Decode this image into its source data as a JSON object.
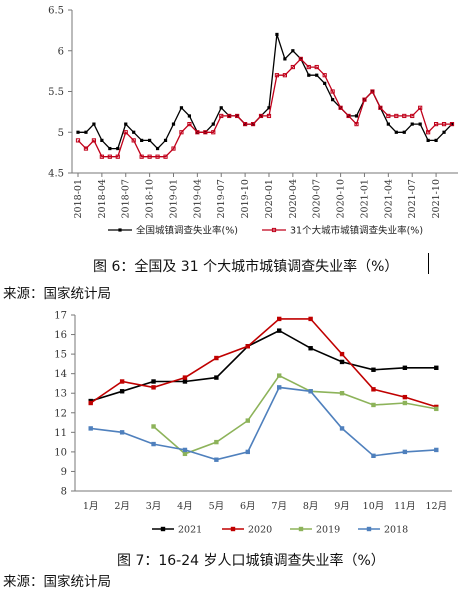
{
  "figure1": {
    "caption": "图 6：全国及 31 个大城市城镇调查失业率（%）",
    "source": "来源：国家统计局"
  },
  "figure2": {
    "caption": "图 7：16-24 岁人口城镇调查失业率（%）",
    "source": "来源：国家统计局"
  },
  "chart_data": [
    {
      "type": "line",
      "title": "",
      "xlabel": "",
      "ylabel": "",
      "ylim": [
        4.5,
        6.5
      ],
      "yticks": [
        "4.5",
        "5",
        "5.5",
        "6",
        "6.5"
      ],
      "grid": false,
      "legend_position": "bottom",
      "xtick_labels": [
        "2018-01",
        "2018-04",
        "2018-07",
        "2018-10",
        "2019-01",
        "2019-04",
        "2019-07",
        "2019-10",
        "2020-01",
        "2020-04",
        "2020-07",
        "2020-10",
        "2021-01",
        "2021-04",
        "2021-07",
        "2021-10"
      ],
      "x": [
        "2018-01",
        "2018-02",
        "2018-03",
        "2018-04",
        "2018-05",
        "2018-06",
        "2018-07",
        "2018-08",
        "2018-09",
        "2018-10",
        "2018-11",
        "2018-12",
        "2019-01",
        "2019-02",
        "2019-03",
        "2019-04",
        "2019-05",
        "2019-06",
        "2019-07",
        "2019-08",
        "2019-09",
        "2019-10",
        "2019-11",
        "2019-12",
        "2020-01",
        "2020-02",
        "2020-03",
        "2020-04",
        "2020-05",
        "2020-06",
        "2020-07",
        "2020-08",
        "2020-09",
        "2020-10",
        "2020-11",
        "2020-12",
        "2021-01",
        "2021-02",
        "2021-03",
        "2021-04",
        "2021-05",
        "2021-06",
        "2021-07",
        "2021-08",
        "2021-09",
        "2021-10",
        "2021-11",
        "2021-12"
      ],
      "series": [
        {
          "name": "全国城镇调查失业率(%)",
          "color": "#000000",
          "values": [
            5.0,
            5.0,
            5.1,
            4.9,
            4.8,
            4.8,
            5.1,
            5.0,
            4.9,
            4.9,
            4.8,
            4.9,
            5.1,
            5.3,
            5.2,
            5.0,
            5.0,
            5.1,
            5.3,
            5.2,
            5.2,
            5.1,
            5.1,
            5.2,
            5.3,
            6.2,
            5.9,
            6.0,
            5.9,
            5.7,
            5.7,
            5.6,
            5.4,
            5.3,
            5.2,
            5.2,
            5.4,
            5.5,
            5.3,
            5.1,
            5.0,
            5.0,
            5.1,
            5.1,
            4.9,
            4.9,
            5.0,
            5.1
          ]
        },
        {
          "name": "31个大城市城镇调查失业率(%)",
          "color": "#c0001a",
          "values": [
            4.9,
            4.8,
            4.9,
            4.7,
            4.7,
            4.7,
            5.0,
            4.9,
            4.7,
            4.7,
            4.7,
            4.7,
            4.8,
            5.0,
            5.1,
            5.0,
            5.0,
            5.0,
            5.2,
            5.2,
            5.2,
            5.1,
            5.1,
            5.2,
            5.2,
            5.7,
            5.7,
            5.8,
            5.9,
            5.8,
            5.8,
            5.7,
            5.5,
            5.3,
            5.2,
            5.1,
            5.4,
            5.5,
            5.3,
            5.2,
            5.2,
            5.2,
            5.2,
            5.3,
            5.0,
            5.1,
            5.1,
            5.1
          ]
        }
      ]
    },
    {
      "type": "line",
      "title": "",
      "xlabel": "",
      "ylabel": "",
      "ylim": [
        8,
        17
      ],
      "yticks": [
        "8",
        "9",
        "10",
        "11",
        "12",
        "13",
        "14",
        "15",
        "16",
        "17"
      ],
      "grid": false,
      "legend_position": "bottom",
      "categories": [
        "1月",
        "2月",
        "3月",
        "4月",
        "5月",
        "6月",
        "7月",
        "8月",
        "9月",
        "10月",
        "11月",
        "12月"
      ],
      "series": [
        {
          "name": "2021",
          "color": "#000000",
          "values": [
            12.6,
            13.1,
            13.6,
            13.6,
            13.8,
            15.4,
            16.2,
            15.3,
            14.6,
            14.2,
            14.3,
            14.3
          ]
        },
        {
          "name": "2020",
          "color": "#c00000",
          "values": [
            12.5,
            13.6,
            13.3,
            13.8,
            14.8,
            15.4,
            16.8,
            16.8,
            15.0,
            13.2,
            12.8,
            12.3
          ]
        },
        {
          "name": "2019",
          "color": "#8db35a",
          "values": [
            null,
            null,
            11.3,
            9.9,
            10.5,
            11.6,
            13.9,
            13.1,
            13.0,
            12.4,
            12.5,
            12.2
          ]
        },
        {
          "name": "2018",
          "color": "#4f80bd",
          "values": [
            11.2,
            11.0,
            10.4,
            10.1,
            9.6,
            10.0,
            13.3,
            13.1,
            11.2,
            9.8,
            10.0,
            10.1
          ]
        }
      ]
    }
  ]
}
